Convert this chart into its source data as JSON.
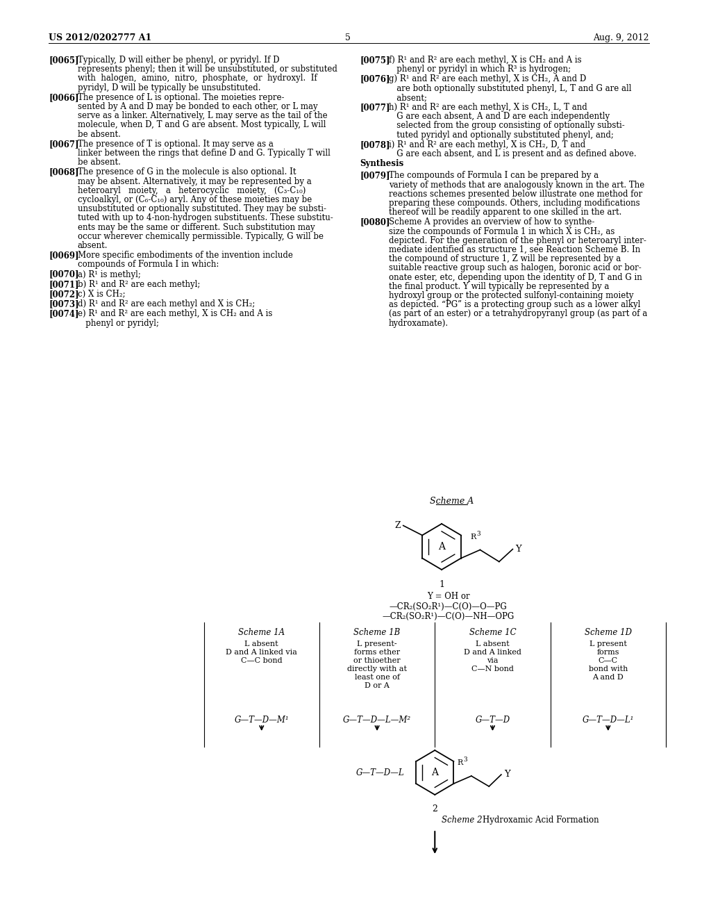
{
  "bg_color": "#ffffff",
  "header_left": "US 2012/0202777 A1",
  "header_right": "Aug. 9, 2012",
  "page_number": "5",
  "left_paragraphs": [
    {
      "tag": "[0065]",
      "lines": [
        "Typically, D will either be phenyl, or pyridyl. If D",
        "represents phenyl; then it will be unsubstituted, or substituted",
        "with  halogen,  amino,  nitro,  phosphate,  or  hydroxyl.  If",
        "pyridyl, D will be typically be unsubstituted."
      ]
    },
    {
      "tag": "[0066]",
      "lines": [
        "The presence of L is optional. The moieties repre-",
        "sented by A and D may be bonded to each other, or L may",
        "serve as a linker. Alternatively, L may serve as the tail of the",
        "molecule, when D, T and G are absent. Most typically, L will",
        "be absent."
      ]
    },
    {
      "tag": "[0067]",
      "lines": [
        "The presence of T is optional. It may serve as a",
        "linker between the rings that define D and G. Typically T will",
        "be absent."
      ]
    },
    {
      "tag": "[0068]",
      "lines": [
        "The presence of G in the molecule is also optional. It",
        "may be absent. Alternatively, it may be represented by a",
        "heteroaryl   moiety,   a   heterocyclic   moiety,   (C₃-C₁₀)",
        "cycloalkyl, or (C₆-C₁₀) aryl. Any of these moieties may be",
        "unsubstituted or optionally substituted. They may be substi-",
        "tuted with up to 4-non-hydrogen substituents. These substitu-",
        "ents may be the same or different. Such substitution may",
        "occur wherever chemically permissible. Typically, G will be",
        "absent."
      ]
    },
    {
      "tag": "[0069]",
      "lines": [
        "More specific embodiments of the invention include",
        "compounds of Formula I in which:"
      ]
    },
    {
      "tag": "[0070]",
      "indent": true,
      "lines": [
        "a) R¹ is methyl;"
      ]
    },
    {
      "tag": "[0071]",
      "indent": true,
      "lines": [
        "b) R¹ and R² are each methyl;"
      ]
    },
    {
      "tag": "[0072]",
      "indent": true,
      "lines": [
        "c) X is CH₂;"
      ]
    },
    {
      "tag": "[0073]",
      "indent": true,
      "lines": [
        "d) R¹ and R² are each methyl and X is CH₂;"
      ]
    },
    {
      "tag": "[0074]",
      "indent": true,
      "lines": [
        "e) R¹ and R² are each methyl, X is CH₂ and A is",
        "   phenyl or pyridyl;"
      ]
    }
  ],
  "right_paragraphs": [
    {
      "tag": "[0075]",
      "lines": [
        "f) R¹ and R² are each methyl, X is CH₂ and A is",
        "   phenyl or pyridyl in which R³ is hydrogen;"
      ]
    },
    {
      "tag": "[0076]",
      "lines": [
        "g) R¹ and R² are each methyl, X is CH₂, A and D",
        "   are both optionally substituted phenyl, L, T and G are all",
        "   absent;"
      ]
    },
    {
      "tag": "[0077]",
      "lines": [
        "h) R¹ and R² are each methyl, X is CH₂, L, T and",
        "   G are each absent, A and D are each independently",
        "   selected from the group consisting of optionally substi-",
        "   tuted pyridyl and optionally substituted phenyl, and;"
      ]
    },
    {
      "tag": "[0078]",
      "lines": [
        "i) R¹ and R² are each methyl, X is CH₂, D, T and",
        "   G are each absent, and L is present and as defined above."
      ]
    },
    {
      "tag": "Synthesis",
      "bold": true,
      "lines": []
    },
    {
      "tag": "[0079]",
      "lines": [
        "The compounds of Formula I can be prepared by a",
        "variety of methods that are analogously known in the art. The",
        "reactions schemes presented below illustrate one method for",
        "preparing these compounds. Others, including modifications",
        "thereof will be readily apparent to one skilled in the art."
      ]
    },
    {
      "tag": "[0080]",
      "lines": [
        "Scheme A provides an overview of how to synthe-",
        "size the compounds of Formula 1 in which X is CH₂, as",
        "depicted. For the generation of the phenyl or heteroaryl inter-",
        "mediate identified as structure 1, see Reaction Scheme B. In",
        "the compound of structure 1, Z will be represented by a",
        "suitable reactive group such as halogen, boronic acid or bor-",
        "onate ester, etc, depending upon the identity of D, T and G in",
        "the final product. Y will typically be represented by a",
        "hydroxyl group or the protected sulfonyl-containing moiety",
        "as depicted. “PG” is a protecting group such as a lower alkyl",
        "(as part of an ester) or a tetrahydropyranyl group (as part of a",
        "hydroxamate)."
      ]
    }
  ],
  "scheme_1_boxes": [
    {
      "label": "Scheme 1A",
      "text_lines": [
        "L absent",
        "D and A linked via",
        "C—C bond"
      ],
      "formula": "G—T—D—M¹"
    },
    {
      "label": "Scheme 1B",
      "text_lines": [
        "L present-",
        "forms ether",
        "or thioether",
        "directly with at",
        "least one of",
        "D or A"
      ],
      "formula": "G—T—D—L—M²"
    },
    {
      "label": "Scheme 1C",
      "text_lines": [
        "L absent",
        "D and A linked",
        "via",
        "C—N bond"
      ],
      "formula": "G—T—D"
    },
    {
      "label": "Scheme 1D",
      "text_lines": [
        "L present",
        "forms",
        "C—C",
        "bond with",
        "A and D"
      ],
      "formula": "G—T—D—L¹"
    }
  ]
}
